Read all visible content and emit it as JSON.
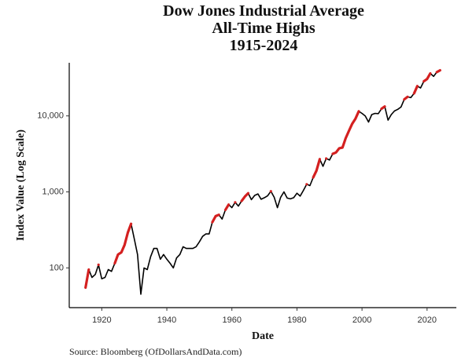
{
  "chart_data": {
    "type": "line",
    "title": [
      "Dow Jones Industrial Average",
      "All-Time Highs",
      "1915-2024"
    ],
    "xlabel": "Date",
    "ylabel": "Index Value (Log Scale)",
    "source": "Source:  Bloomberg (OfDollarsAndData.com)",
    "log_y": true,
    "grid": false,
    "x": [
      1915,
      1916,
      1917,
      1918,
      1919,
      1920,
      1921,
      1922,
      1923,
      1924,
      1925,
      1926,
      1927,
      1928,
      1929,
      1930,
      1931,
      1932,
      1933,
      1934,
      1935,
      1936,
      1937,
      1938,
      1939,
      1940,
      1941,
      1942,
      1943,
      1944,
      1945,
      1946,
      1947,
      1948,
      1949,
      1950,
      1951,
      1952,
      1953,
      1954,
      1955,
      1956,
      1957,
      1958,
      1959,
      1960,
      1961,
      1962,
      1963,
      1964,
      1965,
      1966,
      1967,
      1968,
      1969,
      1970,
      1971,
      1972,
      1973,
      1974,
      1975,
      1976,
      1977,
      1978,
      1979,
      1980,
      1981,
      1982,
      1983,
      1984,
      1985,
      1986,
      1987,
      1988,
      1989,
      1990,
      1991,
      1992,
      1993,
      1994,
      1995,
      1996,
      1997,
      1998,
      1999,
      2000,
      2001,
      2002,
      2003,
      2004,
      2005,
      2006,
      2007,
      2008,
      2009,
      2010,
      2011,
      2012,
      2013,
      2014,
      2015,
      2016,
      2017,
      2018,
      2019,
      2020,
      2021,
      2022,
      2023,
      2024
    ],
    "series": [
      {
        "color": "#000000",
        "values": [
          55,
          95,
          75,
          82,
          110,
          72,
          75,
          95,
          90,
          115,
          150,
          160,
          200,
          290,
          380,
          240,
          150,
          45,
          100,
          95,
          140,
          180,
          180,
          130,
          150,
          130,
          115,
          100,
          135,
          150,
          190,
          180,
          180,
          180,
          190,
          220,
          260,
          280,
          280,
          400,
          480,
          500,
          440,
          580,
          680,
          620,
          730,
          650,
          760,
          870,
          960,
          790,
          900,
          940,
          800,
          840,
          890,
          1020,
          850,
          620,
          850,
          1000,
          830,
          810,
          840,
          960,
          880,
          1050,
          1260,
          1210,
          1550,
          1900,
          2700,
          2170,
          2750,
          2630,
          3170,
          3300,
          3750,
          3830,
          5100,
          6400,
          7900,
          9200,
          11500,
          10800,
          10000,
          8300,
          10400,
          10800,
          10700,
          12400,
          13300,
          8800,
          10400,
          11600,
          12200,
          13100,
          16500,
          17800,
          17400,
          19800,
          24700,
          23300,
          28500,
          30600,
          36300,
          33100,
          37700,
          39800
        ]
      },
      {
        "color": "#d42020",
        "values": [
          55,
          95,
          null,
          null,
          110,
          null,
          null,
          null,
          null,
          115,
          150,
          160,
          200,
          290,
          380,
          null,
          null,
          null,
          null,
          null,
          null,
          null,
          null,
          null,
          null,
          null,
          null,
          null,
          null,
          null,
          null,
          null,
          null,
          null,
          null,
          null,
          null,
          null,
          null,
          400,
          480,
          500,
          null,
          580,
          680,
          null,
          730,
          null,
          760,
          870,
          960,
          null,
          null,
          null,
          null,
          null,
          null,
          1020,
          null,
          null,
          null,
          null,
          null,
          null,
          null,
          null,
          null,
          null,
          1260,
          null,
          1550,
          1900,
          2700,
          null,
          2750,
          null,
          3170,
          3300,
          3750,
          3830,
          5100,
          6400,
          7900,
          9200,
          11500,
          null,
          null,
          null,
          null,
          null,
          null,
          12400,
          13300,
          null,
          null,
          null,
          null,
          null,
          16500,
          17800,
          null,
          19800,
          24700,
          null,
          28500,
          30600,
          36300,
          null,
          37700,
          39800
        ]
      }
    ],
    "xlim": [
      1910,
      2029
    ],
    "ylim": [
      30,
      50000
    ],
    "xticks": [
      1920,
      1940,
      1960,
      1980,
      2000,
      2020
    ],
    "yticks": [
      100,
      {
        "value": 1000,
        "label": "1,000"
      },
      {
        "value": 10000,
        "label": "10,000"
      }
    ]
  }
}
